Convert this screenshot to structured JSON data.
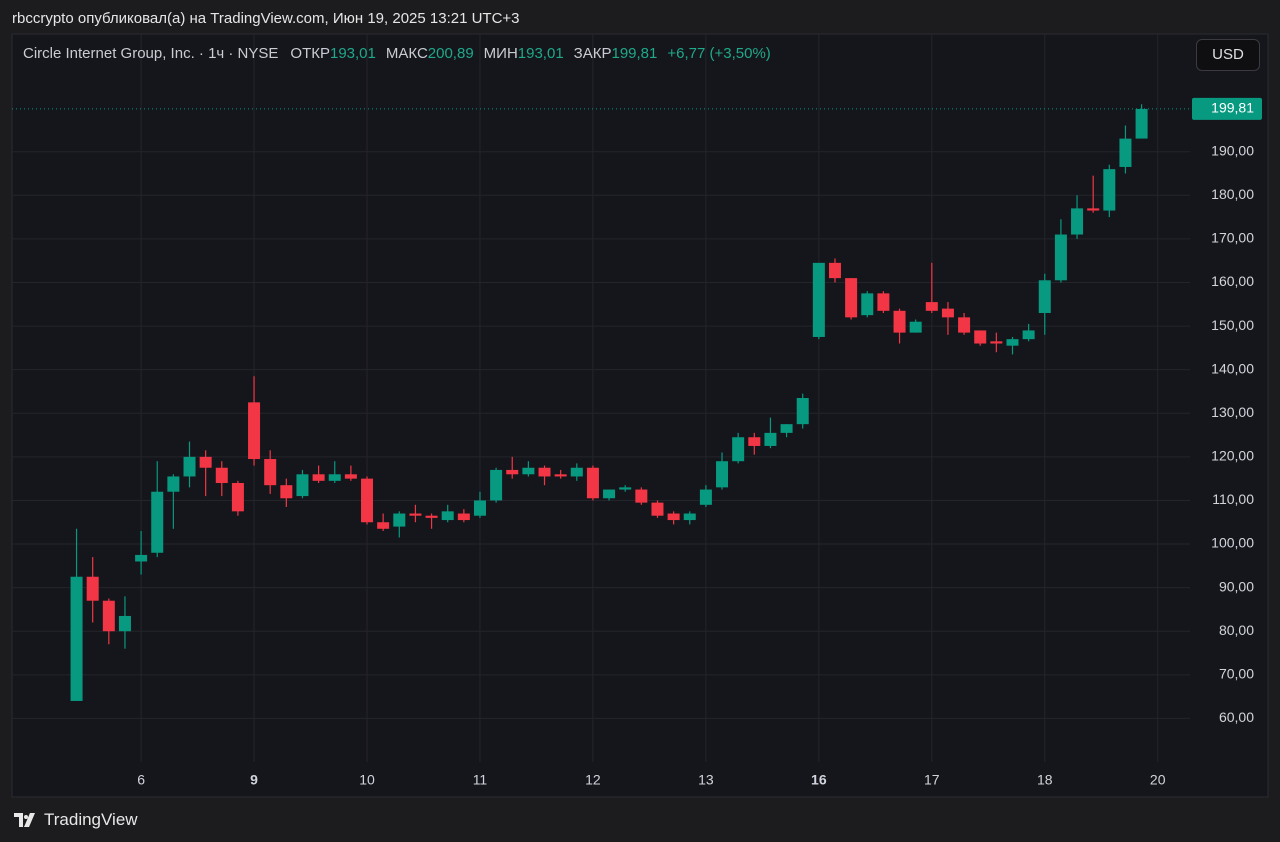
{
  "attribution": "rbccrypto опубликовал(а) на TradingView.com, Июн 19, 2025 13:21 UTC+3",
  "chart_data": {
    "type": "candlestick",
    "title": "Circle Internet Group, Inc. · 1ч · NYSE",
    "ohlc_labels": [
      {
        "label": "ОТКР",
        "value": "193,01"
      },
      {
        "label": "МАКС",
        "value": "200,89"
      },
      {
        "label": "МИН",
        "value": "193,01"
      },
      {
        "label": "ЗАКР",
        "value": "199,81"
      }
    ],
    "change": "+6,77 (+3,50%)",
    "currency": "USD",
    "open": [
      64,
      92.5,
      87,
      80,
      96,
      98,
      112,
      115.5,
      120,
      117.5,
      114,
      132.5,
      119.5,
      113.5,
      111,
      116,
      114.5,
      116,
      115,
      105,
      104,
      107,
      106.5,
      105.5,
      107,
      106.5,
      110,
      117,
      116,
      117.5,
      116,
      115.5,
      117.5,
      110.5,
      112.5,
      112.5,
      109.5,
      107,
      105.5,
      109,
      113,
      119,
      124.5,
      122.5,
      125.5,
      127.5,
      147.5,
      164.5,
      161,
      152.5,
      157.5,
      153.5,
      148.5,
      155.5,
      154,
      152,
      149,
      146.5,
      145.5,
      147,
      153,
      160.5,
      171,
      177,
      176.5,
      186.5,
      193.01
    ],
    "high": [
      103.5,
      97,
      87.5,
      88,
      103,
      119,
      116,
      123.5,
      121.5,
      119,
      114.5,
      138.5,
      121.5,
      115,
      117,
      118,
      119,
      118,
      115.5,
      107,
      107.5,
      109,
      107,
      109,
      108,
      112,
      117.5,
      120,
      119,
      118,
      117,
      118.5,
      118,
      112.5,
      113.5,
      113,
      110,
      107.5,
      107.5,
      113.5,
      121,
      125.5,
      125.5,
      129,
      127.5,
      134.5,
      164.5,
      165.5,
      161,
      158,
      158,
      154,
      151.5,
      164.5,
      155.5,
      153,
      149,
      148.5,
      147.5,
      150.5,
      162,
      174.5,
      180,
      184.5,
      187,
      196,
      200.89
    ],
    "low": [
      64,
      82,
      77,
      76,
      93,
      97,
      103.5,
      113,
      111,
      111,
      106.5,
      118,
      111.5,
      108.5,
      110.5,
      114,
      114,
      114.5,
      104.5,
      103,
      101.5,
      105,
      103.5,
      105,
      105,
      106,
      109.5,
      115,
      115.5,
      113.5,
      115,
      114.5,
      110,
      110,
      112,
      109,
      106,
      104.5,
      104.5,
      108.5,
      112.5,
      118.5,
      120.5,
      122,
      124.5,
      126.5,
      147,
      160,
      151.5,
      152,
      153,
      146,
      148.5,
      153,
      148,
      148,
      145.5,
      144,
      143.5,
      146.5,
      148,
      160,
      170,
      176,
      175,
      185,
      193.01
    ],
    "close": [
      92.5,
      87,
      80,
      83.5,
      97.5,
      112,
      115.5,
      120,
      117.5,
      114,
      107.5,
      119.5,
      113.5,
      110.5,
      116,
      114.5,
      116,
      115,
      105,
      103.5,
      107,
      106.5,
      106,
      107.5,
      105.5,
      110,
      117,
      116,
      117.5,
      115.5,
      115.5,
      117.5,
      110.5,
      112.5,
      113,
      109.5,
      106.5,
      105.5,
      107,
      112.5,
      119,
      124.5,
      122.5,
      125.5,
      127.5,
      133.5,
      164.5,
      161,
      152,
      157.5,
      153.5,
      148.5,
      151,
      153.5,
      152,
      148.5,
      146,
      146,
      147,
      149,
      160.5,
      171,
      177,
      176.5,
      186,
      193,
      199.81
    ],
    "up_color": "#089981",
    "down_color": "#f23645",
    "xlim": [
      -4,
      69
    ],
    "xticks": [
      {
        "value": 4,
        "label": "6"
      },
      {
        "value": 11,
        "label": "9",
        "bold": true
      },
      {
        "value": 18,
        "label": "10"
      },
      {
        "value": 25,
        "label": "11"
      },
      {
        "value": 32,
        "label": "12"
      },
      {
        "value": 39,
        "label": "13"
      },
      {
        "value": 46,
        "label": "16",
        "bold": true
      },
      {
        "value": 53,
        "label": "17"
      },
      {
        "value": 60,
        "label": "18"
      },
      {
        "value": 67,
        "label": "20"
      }
    ],
    "ylim": [
      50,
      217
    ],
    "yticks": [
      {
        "value": 60,
        "label": "60,00"
      },
      {
        "value": 70,
        "label": "70,00"
      },
      {
        "value": 80,
        "label": "80,00"
      },
      {
        "value": 90,
        "label": "90,00"
      },
      {
        "value": 100,
        "label": "100,00"
      },
      {
        "value": 110,
        "label": "110,00"
      },
      {
        "value": 120,
        "label": "120,00"
      },
      {
        "value": 130,
        "label": "130,00"
      },
      {
        "value": 140,
        "label": "140,00"
      },
      {
        "value": 150,
        "label": "150,00"
      },
      {
        "value": 160,
        "label": "160,00"
      },
      {
        "value": 170,
        "label": "170,00"
      },
      {
        "value": 180,
        "label": "180,00"
      },
      {
        "value": 190,
        "label": "190,00"
      }
    ],
    "last_price": {
      "value": 199.81,
      "label": "199,81"
    },
    "grid": true
  },
  "footer": {
    "brand": "TradingView"
  }
}
